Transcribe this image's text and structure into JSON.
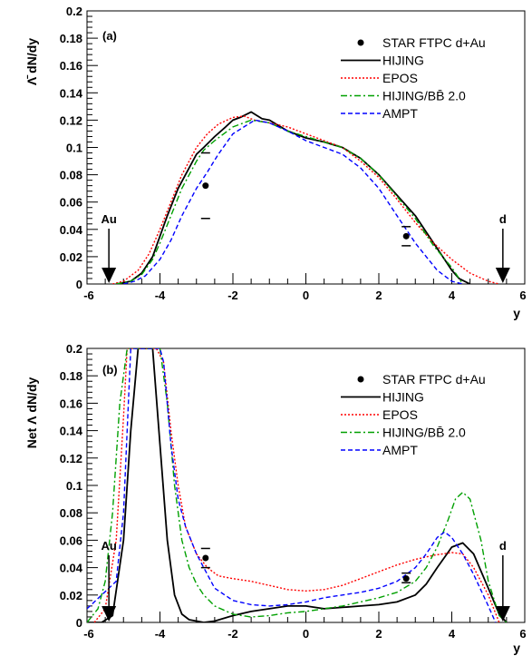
{
  "chart_data": [
    {
      "type": "line",
      "panel_label": "(a)",
      "ylabel": "Λ̄ dN/dy",
      "xlabel": "y",
      "xlim": [
        -6,
        6
      ],
      "ylim": [
        0,
        0.2
      ],
      "xticks": [
        "-6",
        "-4",
        "-2",
        "0",
        "2",
        "4",
        "6"
      ],
      "yticks": [
        "0",
        "0.02",
        "0.04",
        "0.06",
        "0.08",
        "0.1",
        "0.12",
        "0.14",
        "0.16",
        "0.18",
        "0.2"
      ],
      "arrows": [
        {
          "label": "Au",
          "x": -5.4
        },
        {
          "label": "d",
          "x": 5.4
        }
      ],
      "legend_position": "top-right",
      "data_points": {
        "name": "STAR FTPC d+Au",
        "points": [
          {
            "x": -2.75,
            "y": 0.072,
            "ylo": 0.048,
            "yhi": 0.096
          },
          {
            "x": 2.75,
            "y": 0.035,
            "ylo": 0.028,
            "yhi": 0.042
          }
        ]
      },
      "series": [
        {
          "name": "HIJING",
          "color": "#000000",
          "dash": "",
          "x": [
            -5.2,
            -4.8,
            -4.5,
            -4.2,
            -4,
            -3.8,
            -3.5,
            -3.2,
            -3,
            -2.8,
            -2.5,
            -2.2,
            -2,
            -1.8,
            -1.5,
            -1.2,
            -1,
            -0.5,
            0,
            0.5,
            1,
            1.5,
            2,
            2.5,
            3,
            3.2,
            3.5,
            3.8,
            4,
            4.2,
            4.5
          ],
          "y": [
            0,
            0.002,
            0.008,
            0.02,
            0.035,
            0.05,
            0.07,
            0.085,
            0.095,
            0.1,
            0.108,
            0.115,
            0.12,
            0.122,
            0.126,
            0.121,
            0.12,
            0.112,
            0.107,
            0.104,
            0.1,
            0.092,
            0.08,
            0.065,
            0.05,
            0.042,
            0.03,
            0.018,
            0.01,
            0.004,
            0
          ]
        },
        {
          "name": "EPOS",
          "color": "#ff0000",
          "dash": "2,2",
          "x": [
            -5.3,
            -5,
            -4.6,
            -4.3,
            -4,
            -3.7,
            -3.4,
            -3,
            -2.7,
            -2.4,
            -2,
            -1.7,
            -1.4,
            -1,
            -0.5,
            0,
            0.5,
            1,
            1.5,
            2,
            2.5,
            3,
            3.5,
            4,
            4.5,
            5,
            5.3
          ],
          "y": [
            0,
            0.002,
            0.01,
            0.022,
            0.04,
            0.06,
            0.08,
            0.1,
            0.11,
            0.117,
            0.122,
            0.123,
            0.12,
            0.118,
            0.115,
            0.11,
            0.105,
            0.1,
            0.09,
            0.078,
            0.062,
            0.045,
            0.03,
            0.018,
            0.008,
            0.002,
            0
          ]
        },
        {
          "name": "HIJING/BB̄ 2.0",
          "color": "#00a000",
          "dash": "7,3,2,3",
          "x": [
            -5.2,
            -4.8,
            -4.5,
            -4.2,
            -4,
            -3.7,
            -3.4,
            -3,
            -2.8,
            -2.5,
            -2,
            -1.5,
            -1,
            -0.5,
            0,
            0.5,
            1,
            1.5,
            2,
            2.5,
            3,
            3.5,
            4,
            4.3
          ],
          "y": [
            0,
            0.002,
            0.007,
            0.018,
            0.03,
            0.05,
            0.07,
            0.09,
            0.098,
            0.105,
            0.115,
            0.12,
            0.118,
            0.112,
            0.108,
            0.104,
            0.1,
            0.092,
            0.08,
            0.064,
            0.048,
            0.028,
            0.012,
            0
          ]
        },
        {
          "name": "AMPT",
          "color": "#0000ff",
          "dash": "5,3",
          "x": [
            -5,
            -4.7,
            -4.4,
            -4,
            -3.7,
            -3.4,
            -3,
            -2.7,
            -2.4,
            -2,
            -1.7,
            -1.4,
            -1,
            -0.5,
            0,
            0.5,
            1,
            1.5,
            2,
            2.5,
            3,
            3.3,
            3.6,
            4,
            4.3
          ],
          "y": [
            0,
            0.002,
            0.006,
            0.018,
            0.032,
            0.05,
            0.07,
            0.082,
            0.095,
            0.11,
            0.115,
            0.12,
            0.118,
            0.112,
            0.105,
            0.1,
            0.095,
            0.085,
            0.07,
            0.05,
            0.03,
            0.02,
            0.01,
            0.002,
            0
          ]
        }
      ]
    },
    {
      "type": "line",
      "panel_label": "(b)",
      "ylabel": "Net Λ dN/dy",
      "xlabel": "y",
      "xlim": [
        -6,
        6
      ],
      "ylim": [
        0,
        0.2
      ],
      "xticks": [
        "-6",
        "-4",
        "-2",
        "0",
        "2",
        "4",
        "6"
      ],
      "yticks": [
        "0",
        "0.02",
        "0.04",
        "0.06",
        "0.08",
        "0.1",
        "0.12",
        "0.14",
        "0.16",
        "0.18",
        "0.2"
      ],
      "arrows": [
        {
          "label": "Au",
          "x": -5.4
        },
        {
          "label": "d",
          "x": 5.4
        }
      ],
      "legend_position": "top-right",
      "data_points": {
        "name": "STAR FTPC d+Au",
        "points": [
          {
            "x": -2.75,
            "y": 0.047,
            "ylo": 0.04,
            "yhi": 0.054
          },
          {
            "x": 2.75,
            "y": 0.032,
            "ylo": 0.029,
            "yhi": 0.036
          }
        ]
      },
      "series": [
        {
          "name": "HIJING",
          "color": "#000000",
          "dash": "",
          "x": [
            -6,
            -5.6,
            -5.3,
            -5,
            -4.8,
            -4.6,
            -4.4,
            -4.2,
            -4,
            -3.8,
            -3.6,
            -3.4,
            -3.2,
            -3,
            -2.8,
            -2.5,
            -2,
            -1.5,
            -1,
            -0.5,
            0,
            0.5,
            1,
            1.5,
            2,
            2.5,
            3,
            3.3,
            3.6,
            4,
            4.3,
            4.6,
            5,
            5.3,
            5.5
          ],
          "y": [
            0,
            0,
            0.005,
            0.06,
            0.14,
            0.2,
            0.2,
            0.2,
            0.13,
            0.06,
            0.02,
            0.006,
            0.002,
            0.001,
            0,
            0.001,
            0.005,
            0.008,
            0.01,
            0.012,
            0.012,
            0.01,
            0.011,
            0.012,
            0.013,
            0.015,
            0.02,
            0.028,
            0.04,
            0.055,
            0.058,
            0.05,
            0.025,
            0.006,
            0
          ]
        },
        {
          "name": "EPOS",
          "color": "#ff0000",
          "dash": "2,2",
          "x": [
            -5.8,
            -5.5,
            -5.2,
            -5,
            -4.9,
            -4.5,
            -4.3,
            -4.1,
            -3.9,
            -3.7,
            -3.5,
            -3.3,
            -3,
            -2.7,
            -2.4,
            -2,
            -1.5,
            -1,
            -0.5,
            0,
            0.5,
            1,
            1.5,
            2,
            2.5,
            3,
            3.5,
            4,
            4.3,
            4.6,
            5,
            5.3
          ],
          "y": [
            0,
            0.01,
            0.06,
            0.15,
            0.2,
            0.2,
            0.2,
            0.2,
            0.19,
            0.14,
            0.1,
            0.07,
            0.05,
            0.04,
            0.034,
            0.032,
            0.03,
            0.027,
            0.024,
            0.023,
            0.024,
            0.027,
            0.032,
            0.037,
            0.042,
            0.046,
            0.049,
            0.051,
            0.05,
            0.04,
            0.02,
            0
          ]
        },
        {
          "name": "HIJING/BB̄ 2.0",
          "color": "#00a000",
          "dash": "7,3,2,3",
          "x": [
            -6,
            -5.7,
            -5.5,
            -5.3,
            -5.1,
            -4.9,
            -4.5,
            -4.2,
            -4,
            -3.8,
            -3.6,
            -3.4,
            -3.2,
            -3,
            -2.8,
            -2.5,
            -2,
            -1.5,
            -1,
            -0.5,
            0,
            0.5,
            1,
            1.5,
            2,
            2.5,
            3,
            3.3,
            3.6,
            3.9,
            4.1,
            4.3,
            4.5,
            4.8,
            5,
            5.3,
            5.5
          ],
          "y": [
            0,
            0.01,
            0.03,
            0.08,
            0.16,
            0.2,
            0.2,
            0.2,
            0.2,
            0.16,
            0.1,
            0.06,
            0.04,
            0.028,
            0.02,
            0.012,
            0.006,
            0.004,
            0.005,
            0.007,
            0.008,
            0.01,
            0.012,
            0.015,
            0.018,
            0.022,
            0.03,
            0.04,
            0.055,
            0.075,
            0.09,
            0.095,
            0.09,
            0.06,
            0.03,
            0.005,
            0
          ]
        },
        {
          "name": "AMPT",
          "color": "#0000ff",
          "dash": "5,3",
          "x": [
            -6,
            -5.8,
            -5.6,
            -5.4,
            -5.2,
            -5,
            -4.8,
            -4.5,
            -4.2,
            -4,
            -3.9,
            -3.7,
            -3.5,
            -3.3,
            -3,
            -2.8,
            -2.5,
            -2,
            -1.5,
            -1,
            -0.5,
            0,
            0.5,
            1,
            1.5,
            2,
            2.5,
            3,
            3.3,
            3.6,
            3.8,
            4,
            4.3,
            4.6,
            5,
            5.2
          ],
          "y": [
            0.01,
            0.015,
            0.02,
            0.025,
            0.03,
            0.08,
            0.2,
            0.2,
            0.2,
            0.2,
            0.19,
            0.13,
            0.09,
            0.07,
            0.05,
            0.04,
            0.025,
            0.016,
            0.013,
            0.012,
            0.013,
            0.015,
            0.018,
            0.02,
            0.022,
            0.025,
            0.03,
            0.04,
            0.05,
            0.062,
            0.066,
            0.062,
            0.05,
            0.035,
            0.012,
            0
          ]
        }
      ]
    }
  ]
}
